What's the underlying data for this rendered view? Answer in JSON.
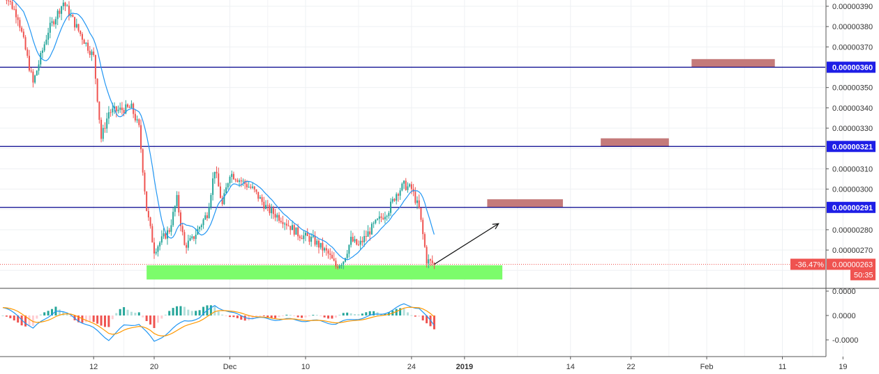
{
  "chart_data": {
    "type": "candlestick",
    "price_axis": {
      "range": [
        2.5e-06,
        3.95e-06
      ],
      "ticks": [
        "0.00000390",
        "0.00000380",
        "0.00000370",
        "0.00000350",
        "0.00000340",
        "0.00000330",
        "0.00000310",
        "0.00000300",
        "0.00000280",
        "0.00000270"
      ]
    },
    "time_axis": {
      "ticks": [
        {
          "label": "12",
          "day": 12
        },
        {
          "label": "20",
          "day": 20
        },
        {
          "label": "Dec",
          "day": 30
        },
        {
          "label": "10",
          "day": 40
        },
        {
          "label": "24",
          "day": 54
        },
        {
          "label": "2019",
          "day": 61,
          "bold": true
        },
        {
          "label": "14",
          "day": 75
        },
        {
          "label": "22",
          "day": 83
        },
        {
          "label": "Feb",
          "day": 93
        },
        {
          "label": "11",
          "day": 103
        },
        {
          "label": "19",
          "day": 111
        }
      ]
    },
    "levels": [
      {
        "price": 3.6e-06,
        "label": "0.00000360",
        "color": "#00008b",
        "tag_color": "#1e1ee6"
      },
      {
        "price": 3.21e-06,
        "label": "0.00000321",
        "color": "#00008b",
        "tag_color": "#1e1ee6"
      },
      {
        "price": 2.91e-06,
        "label": "0.00000291",
        "color": "#00008b",
        "tag_color": "#1e1ee6"
      }
    ],
    "current_price": {
      "label": "0.00000263",
      "price": 2.63e-06,
      "change": "-36.47%",
      "countdown": "50:35",
      "color": "#ef5350"
    },
    "support_zone": {
      "from_day": 19,
      "to_day": 66,
      "low": 2.555e-06,
      "high": 2.625e-06,
      "color": "#7cfc6b"
    },
    "target_zones": [
      {
        "from_day": 64,
        "to_day": 74,
        "low": 2.91e-06,
        "high": 2.95e-06,
        "color": "#c47a7a"
      },
      {
        "from_day": 79,
        "to_day": 88,
        "low": 3.21e-06,
        "high": 3.25e-06,
        "color": "#c47a7a"
      },
      {
        "from_day": 91,
        "to_day": 102,
        "low": 3.6e-06,
        "high": 3.64e-06,
        "color": "#c47a7a"
      }
    ],
    "arrow": {
      "from_day": 57,
      "from_price": 2.63e-06,
      "to_day": 65.5,
      "to_price": 2.83e-06
    },
    "price_path": [
      {
        "day": 0,
        "price": 3.98e-06
      },
      {
        "day": 2,
        "price": 3.85e-06
      },
      {
        "day": 4,
        "price": 3.52e-06
      },
      {
        "day": 6,
        "price": 3.78e-06
      },
      {
        "day": 8,
        "price": 3.92e-06
      },
      {
        "day": 10,
        "price": 3.78e-06
      },
      {
        "day": 12,
        "price": 3.65e-06
      },
      {
        "day": 13,
        "price": 3.25e-06
      },
      {
        "day": 14,
        "price": 3.38e-06
      },
      {
        "day": 17,
        "price": 3.4e-06
      },
      {
        "day": 18,
        "price": 3.3e-06
      },
      {
        "day": 19,
        "price": 2.9e-06
      },
      {
        "day": 20,
        "price": 2.7e-06
      },
      {
        "day": 22,
        "price": 2.8e-06
      },
      {
        "day": 23,
        "price": 2.95e-06
      },
      {
        "day": 24,
        "price": 2.72e-06
      },
      {
        "day": 25,
        "price": 2.75e-06
      },
      {
        "day": 27,
        "price": 2.88e-06
      },
      {
        "day": 28,
        "price": 3.1e-06
      },
      {
        "day": 29,
        "price": 2.92e-06
      },
      {
        "day": 30,
        "price": 3.08e-06
      },
      {
        "day": 33,
        "price": 3e-06
      },
      {
        "day": 35,
        "price": 2.9e-06
      },
      {
        "day": 37,
        "price": 2.85e-06
      },
      {
        "day": 39,
        "price": 2.78e-06
      },
      {
        "day": 41,
        "price": 2.75e-06
      },
      {
        "day": 43,
        "price": 2.68e-06
      },
      {
        "day": 44,
        "price": 2.62e-06
      },
      {
        "day": 45,
        "price": 2.65e-06
      },
      {
        "day": 46,
        "price": 2.75e-06
      },
      {
        "day": 47,
        "price": 2.72e-06
      },
      {
        "day": 49,
        "price": 2.82e-06
      },
      {
        "day": 51,
        "price": 2.9e-06
      },
      {
        "day": 52,
        "price": 2.98e-06
      },
      {
        "day": 53,
        "price": 3.02e-06
      },
      {
        "day": 54,
        "price": 3e-06
      },
      {
        "day": 55,
        "price": 2.9e-06
      },
      {
        "day": 56,
        "price": 2.65e-06
      },
      {
        "day": 57,
        "price": 2.63e-06
      }
    ],
    "macd_axis": {
      "ticks": [
        "0.0000",
        "0.0000",
        "-0.0000"
      ]
    },
    "macd_path": [
      {
        "day": 0,
        "value": 0.3
      },
      {
        "day": 2,
        "value": 0.0
      },
      {
        "day": 4,
        "value": -0.5
      },
      {
        "day": 7,
        "value": 0.2
      },
      {
        "day": 9,
        "value": 0.0
      },
      {
        "day": 12,
        "value": -0.5
      },
      {
        "day": 14,
        "value": -0.9
      },
      {
        "day": 16,
        "value": -0.4
      },
      {
        "day": 18,
        "value": -0.3
      },
      {
        "day": 20,
        "value": -1.0
      },
      {
        "day": 22,
        "value": -0.6
      },
      {
        "day": 24,
        "value": -0.2
      },
      {
        "day": 26,
        "value": -0.1
      },
      {
        "day": 28,
        "value": 0.4
      },
      {
        "day": 30,
        "value": 0.1
      },
      {
        "day": 33,
        "value": -0.1
      },
      {
        "day": 37,
        "value": -0.15
      },
      {
        "day": 41,
        "value": -0.2
      },
      {
        "day": 44,
        "value": -0.3
      },
      {
        "day": 47,
        "value": -0.1
      },
      {
        "day": 50,
        "value": 0.05
      },
      {
        "day": 53,
        "value": 0.4
      },
      {
        "day": 55,
        "value": 0.3
      },
      {
        "day": 57,
        "value": -0.4
      }
    ]
  }
}
